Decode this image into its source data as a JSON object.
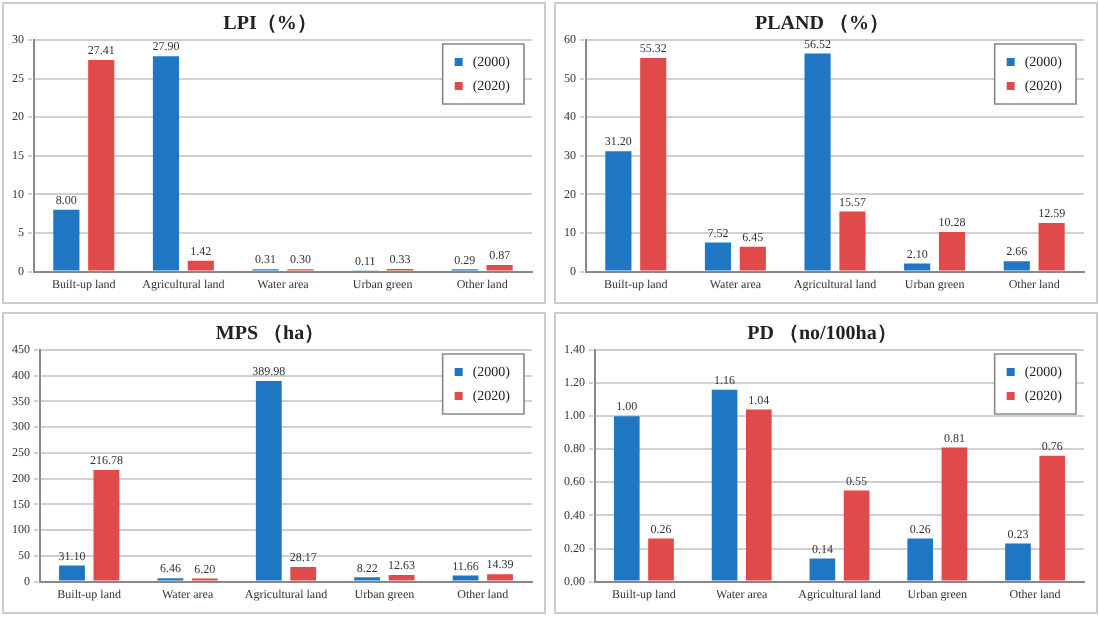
{
  "chart_data": [
    {
      "type": "bar",
      "title": "LPI（%）",
      "categories": [
        "Built-up land",
        "Agricultural land",
        "Water area",
        "Urban green",
        "Other land"
      ],
      "series": [
        {
          "name": "(2000)",
          "color": "#1f77c4",
          "values": [
            8.0,
            27.9,
            0.31,
            0.11,
            0.29
          ],
          "value_labels": [
            "8.00",
            "27.90",
            "0.31",
            "0.11",
            "0.29"
          ]
        },
        {
          "name": "(2020)",
          "color": "#e04a4a",
          "values": [
            27.41,
            1.42,
            0.3,
            0.33,
            0.87
          ],
          "value_labels": [
            "27.41",
            "1.42",
            "0.30",
            "0.33",
            "0.87"
          ]
        }
      ],
      "ylim": [
        0,
        30
      ],
      "yticks": [
        0,
        5,
        10,
        15,
        20,
        25,
        30
      ],
      "grid": "y",
      "legend": "top right"
    },
    {
      "type": "bar",
      "title": "PLAND （%）",
      "categories": [
        "Built-up land",
        "Water area",
        "Agricultural land",
        "Urban green",
        "Other land"
      ],
      "series": [
        {
          "name": "(2000)",
          "color": "#1f77c4",
          "values": [
            31.2,
            7.52,
            56.52,
            2.1,
            2.66
          ],
          "value_labels": [
            "31.20",
            "7.52",
            "56.52",
            "2.10",
            "2.66"
          ]
        },
        {
          "name": "(2020)",
          "color": "#e04a4a",
          "values": [
            55.32,
            6.45,
            15.57,
            10.28,
            12.59
          ],
          "value_labels": [
            "55.32",
            "6.45",
            "15.57",
            "10.28",
            "12.59"
          ]
        }
      ],
      "ylim": [
        0,
        60
      ],
      "yticks": [
        0,
        10,
        20,
        30,
        40,
        50,
        60
      ],
      "grid": "y",
      "legend": "top right"
    },
    {
      "type": "bar",
      "title": "MPS （ha）",
      "categories": [
        "Built-up land",
        "Water area",
        "Agricultural land",
        "Urban green",
        "Other land"
      ],
      "series": [
        {
          "name": "(2000)",
          "color": "#1f77c4",
          "values": [
            31.1,
            6.46,
            389.98,
            8.22,
            11.66
          ],
          "value_labels": [
            "31.10",
            "6.46",
            "389.98",
            "8.22",
            "11.66"
          ]
        },
        {
          "name": "(2020)",
          "color": "#e04a4a",
          "values": [
            216.78,
            6.2,
            28.17,
            12.63,
            14.39
          ],
          "value_labels": [
            "216.78",
            "6.20",
            "28.17",
            "12.63",
            "14.39"
          ]
        }
      ],
      "ylim": [
        0,
        450
      ],
      "yticks": [
        0,
        50,
        100,
        150,
        200,
        250,
        300,
        350,
        400,
        450
      ],
      "grid": "y",
      "legend": "top right"
    },
    {
      "type": "bar",
      "title": "PD （no/100ha）",
      "categories": [
        "Built-up land",
        "Water area",
        "Agricultural land",
        "Urban green",
        "Other land"
      ],
      "series": [
        {
          "name": "(2000)",
          "color": "#1f77c4",
          "values": [
            1.0,
            1.16,
            0.14,
            0.26,
            0.23
          ],
          "value_labels": [
            "1.00",
            "1.16",
            "0.14",
            "0.26",
            "0.23"
          ]
        },
        {
          "name": "(2020)",
          "color": "#e04a4a",
          "values": [
            0.26,
            1.04,
            0.55,
            0.81,
            0.76
          ],
          "value_labels": [
            "0.26",
            "1.04",
            "0.55",
            "0.81",
            "0.76"
          ]
        }
      ],
      "ylim": [
        0,
        1.4
      ],
      "yticks": [
        {
          "value": 0,
          "label": "0.00"
        },
        {
          "value": 0.2,
          "label": "0.20"
        },
        {
          "value": 0.4,
          "label": "0.40"
        },
        {
          "value": 0.6,
          "label": "0.60"
        },
        {
          "value": 0.8,
          "label": "0.80"
        },
        {
          "value": 1.0,
          "label": "1.00"
        },
        {
          "value": 1.2,
          "label": "1.20"
        },
        {
          "value": 1.4,
          "label": "1.40"
        }
      ],
      "grid": "y",
      "legend": "top right"
    }
  ]
}
